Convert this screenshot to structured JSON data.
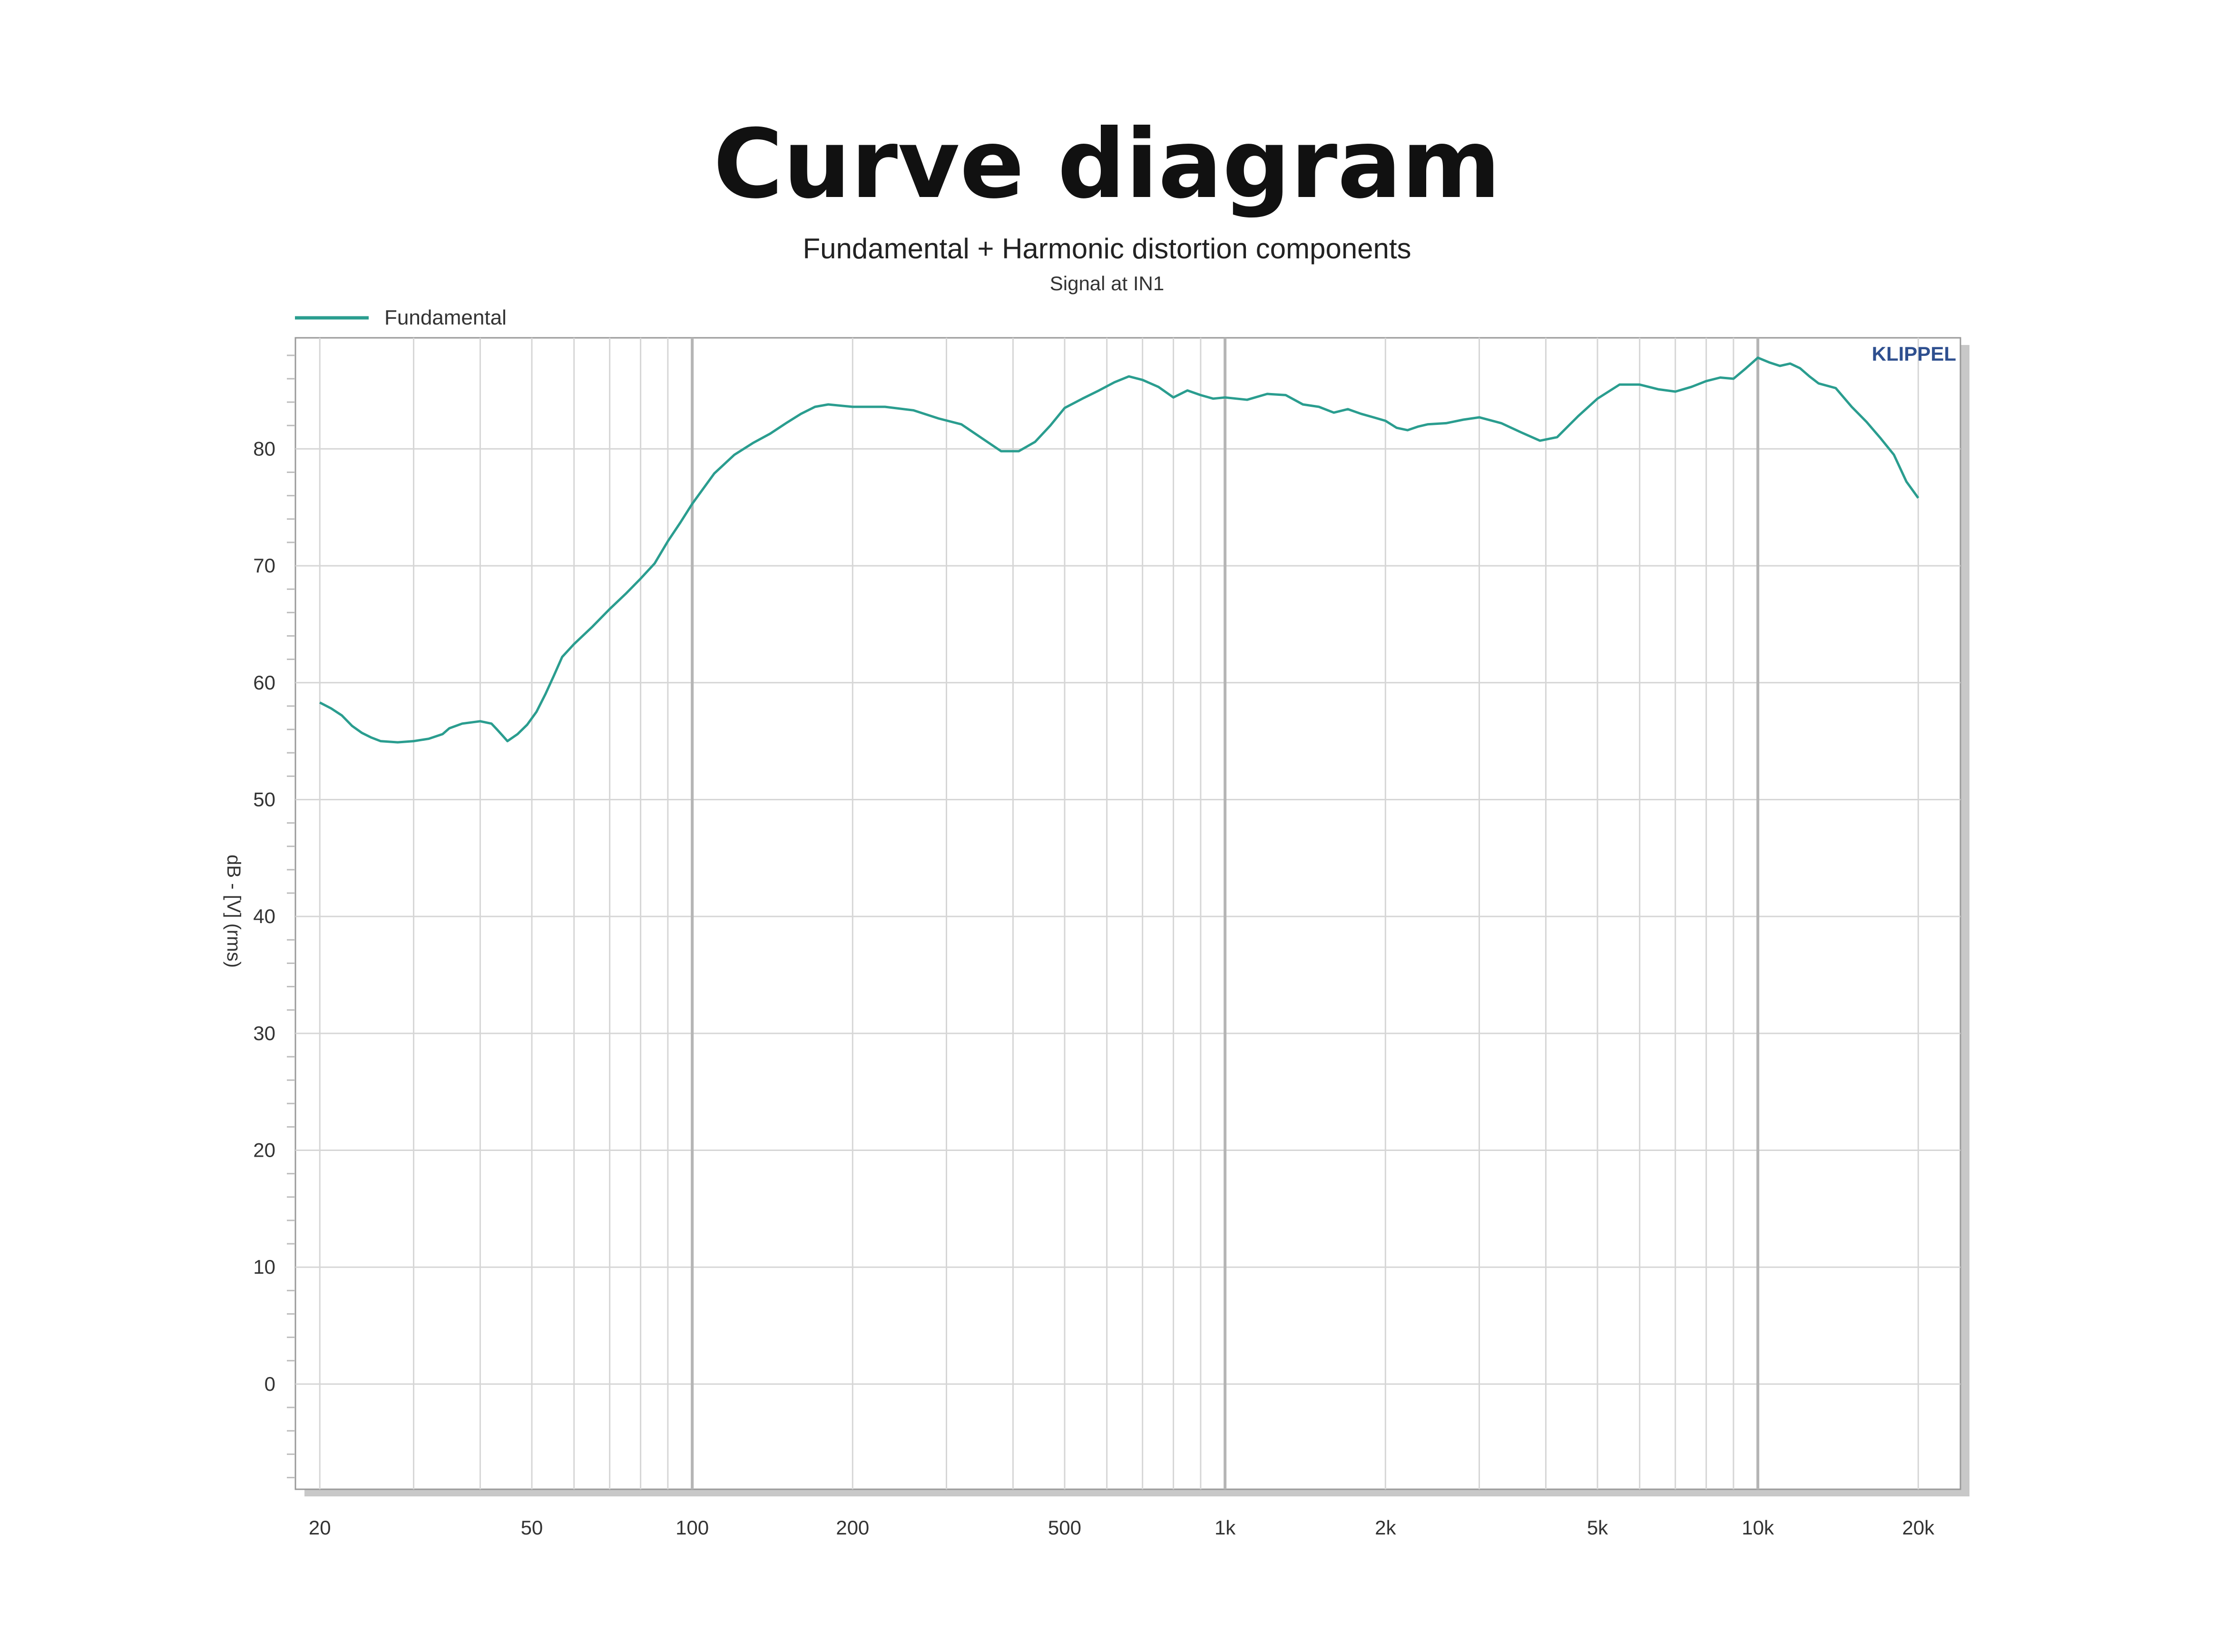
{
  "page_title": "Curve diagram",
  "chart_data": {
    "type": "line",
    "title": "Fundamental + Harmonic distortion components",
    "subtitle": "Signal at IN1",
    "brand": "KLIPPEL",
    "xlabel": "",
    "ylabel": "dB - [V] (rms)",
    "x_scale": "log",
    "xlim": [
      18,
      24000
    ],
    "ylim": [
      -9,
      89.5
    ],
    "grid": true,
    "legend_position": "top-left",
    "x_ticks": [
      {
        "value": 20,
        "label": "20"
      },
      {
        "value": 50,
        "label": "50"
      },
      {
        "value": 100,
        "label": "100"
      },
      {
        "value": 200,
        "label": "200"
      },
      {
        "value": 500,
        "label": "500"
      },
      {
        "value": 1000,
        "label": "1k"
      },
      {
        "value": 2000,
        "label": "2k"
      },
      {
        "value": 5000,
        "label": "5k"
      },
      {
        "value": 10000,
        "label": "10k"
      },
      {
        "value": 20000,
        "label": "20k"
      }
    ],
    "y_ticks": [
      {
        "value": 0,
        "label": "0"
      },
      {
        "value": 10,
        "label": "10"
      },
      {
        "value": 20,
        "label": "20"
      },
      {
        "value": 30,
        "label": "30"
      },
      {
        "value": 40,
        "label": "40"
      },
      {
        "value": 50,
        "label": "50"
      },
      {
        "value": 60,
        "label": "60"
      },
      {
        "value": 70,
        "label": "70"
      },
      {
        "value": 80,
        "label": "80"
      }
    ],
    "series": [
      {
        "name": "Fundamental",
        "color": "#2a9d8f",
        "points": [
          [
            20,
            58.3
          ],
          [
            21,
            57.8
          ],
          [
            22,
            57.2
          ],
          [
            23,
            56.3
          ],
          [
            24,
            55.7
          ],
          [
            25,
            55.3
          ],
          [
            26,
            55.0
          ],
          [
            28,
            54.9
          ],
          [
            30,
            55.0
          ],
          [
            32,
            55.2
          ],
          [
            34,
            55.6
          ],
          [
            35,
            56.1
          ],
          [
            37,
            56.5
          ],
          [
            40,
            56.7
          ],
          [
            42,
            56.5
          ],
          [
            43,
            56.0
          ],
          [
            44,
            55.5
          ],
          [
            45,
            55.0
          ],
          [
            47,
            55.6
          ],
          [
            49,
            56.4
          ],
          [
            51,
            57.5
          ],
          [
            53,
            59.0
          ],
          [
            55,
            60.6
          ],
          [
            57,
            62.2
          ],
          [
            60,
            63.3
          ],
          [
            65,
            64.8
          ],
          [
            70,
            66.3
          ],
          [
            75,
            67.6
          ],
          [
            80,
            68.9
          ],
          [
            85,
            70.2
          ],
          [
            90,
            72.1
          ],
          [
            95,
            73.7
          ],
          [
            100,
            75.3
          ],
          [
            110,
            77.9
          ],
          [
            120,
            79.5
          ],
          [
            130,
            80.5
          ],
          [
            140,
            81.3
          ],
          [
            150,
            82.2
          ],
          [
            160,
            83.0
          ],
          [
            170,
            83.6
          ],
          [
            180,
            83.8
          ],
          [
            200,
            83.6
          ],
          [
            230,
            83.6
          ],
          [
            260,
            83.3
          ],
          [
            290,
            82.6
          ],
          [
            320,
            82.1
          ],
          [
            350,
            80.9
          ],
          [
            380,
            79.8
          ],
          [
            410,
            79.8
          ],
          [
            440,
            80.6
          ],
          [
            470,
            82.0
          ],
          [
            500,
            83.5
          ],
          [
            540,
            84.3
          ],
          [
            580,
            85.0
          ],
          [
            620,
            85.7
          ],
          [
            660,
            86.2
          ],
          [
            700,
            85.9
          ],
          [
            750,
            85.3
          ],
          [
            800,
            84.4
          ],
          [
            850,
            85.0
          ],
          [
            900,
            84.6
          ],
          [
            950,
            84.3
          ],
          [
            1000,
            84.4
          ],
          [
            1100,
            84.2
          ],
          [
            1200,
            84.7
          ],
          [
            1300,
            84.6
          ],
          [
            1400,
            83.8
          ],
          [
            1500,
            83.6
          ],
          [
            1600,
            83.1
          ],
          [
            1700,
            83.4
          ],
          [
            1800,
            83.0
          ],
          [
            1900,
            82.7
          ],
          [
            2000,
            82.4
          ],
          [
            2100,
            81.8
          ],
          [
            2200,
            81.6
          ],
          [
            2300,
            81.9
          ],
          [
            2400,
            82.1
          ],
          [
            2600,
            82.2
          ],
          [
            2800,
            82.5
          ],
          [
            3000,
            82.7
          ],
          [
            3300,
            82.2
          ],
          [
            3600,
            81.4
          ],
          [
            3900,
            80.7
          ],
          [
            4200,
            81.0
          ],
          [
            4600,
            82.8
          ],
          [
            5000,
            84.3
          ],
          [
            5500,
            85.5
          ],
          [
            6000,
            85.5
          ],
          [
            6500,
            85.1
          ],
          [
            7000,
            84.9
          ],
          [
            7500,
            85.3
          ],
          [
            8000,
            85.8
          ],
          [
            8500,
            86.1
          ],
          [
            9000,
            86.0
          ],
          [
            9500,
            86.9
          ],
          [
            10000,
            87.8
          ],
          [
            10500,
            87.4
          ],
          [
            11000,
            87.1
          ],
          [
            11500,
            87.3
          ],
          [
            12000,
            86.9
          ],
          [
            12500,
            86.2
          ],
          [
            13000,
            85.6
          ],
          [
            14000,
            85.2
          ],
          [
            15000,
            83.6
          ],
          [
            16000,
            82.3
          ],
          [
            17000,
            80.9
          ],
          [
            18000,
            79.5
          ],
          [
            19000,
            77.2
          ],
          [
            20000,
            75.8
          ]
        ]
      }
    ]
  }
}
